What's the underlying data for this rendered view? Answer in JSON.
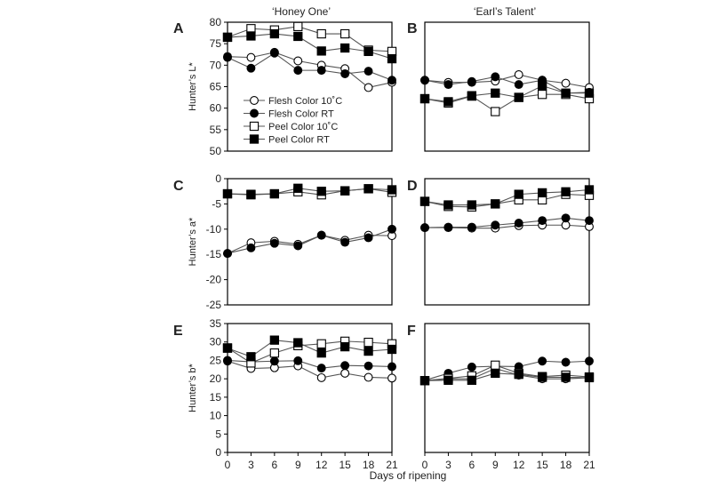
{
  "column_titles": [
    "‘Honey One’",
    "‘Earl’s Talent’"
  ],
  "x_axis_label": "Days of ripening",
  "legend": [
    {
      "label": "Flesh Color 10˚C",
      "marker": "circle",
      "fill": "open"
    },
    {
      "label": "Flesh Color RT",
      "marker": "circle",
      "fill": "filled"
    },
    {
      "label": "Peel Color 10˚C",
      "marker": "square",
      "fill": "open"
    },
    {
      "label": "Peel Color RT",
      "marker": "square",
      "fill": "filled"
    }
  ],
  "chart_data": [
    {
      "panel": "A",
      "type": "line",
      "title": "‘Honey One’",
      "ylabel": "Hunter’s L*",
      "xlabel": "",
      "x": [
        0,
        3,
        6,
        9,
        12,
        15,
        18,
        21
      ],
      "xlim": [
        0,
        21
      ],
      "ylim": [
        50,
        80
      ],
      "yticks": [
        50,
        55,
        60,
        65,
        70,
        75,
        80
      ],
      "xticks": [],
      "series": [
        {
          "name": "Flesh Color 10˚C",
          "values": [
            72,
            71.8,
            73,
            71,
            70,
            69.2,
            64.8,
            66
          ]
        },
        {
          "name": "Flesh Color RT",
          "values": [
            71.8,
            69.3,
            72.8,
            68.8,
            68.8,
            68,
            68.6,
            66.5
          ]
        },
        {
          "name": "Peel Color 10˚C",
          "values": [
            76.5,
            78.5,
            78.2,
            79,
            77.3,
            77.3,
            73.5,
            73.2
          ]
        },
        {
          "name": "Peel Color RT",
          "values": [
            76.5,
            76.8,
            77.3,
            76.7,
            73.3,
            74,
            73.2,
            71.5
          ]
        }
      ]
    },
    {
      "panel": "B",
      "type": "line",
      "title": "‘Earl’s Talent’",
      "ylabel": "",
      "xlabel": "",
      "x": [
        0,
        3,
        6,
        9,
        12,
        15,
        18,
        21
      ],
      "xlim": [
        0,
        21
      ],
      "ylim": [
        50,
        80
      ],
      "yticks": [],
      "xticks": [],
      "series": [
        {
          "name": "Flesh Color 10˚C",
          "values": [
            66.5,
            66,
            66,
            66.3,
            67.8,
            66.5,
            65.8,
            64.8
          ]
        },
        {
          "name": "Flesh Color RT",
          "values": [
            66.5,
            65.5,
            66.2,
            67.3,
            65.5,
            66.5,
            63.5,
            63.7
          ]
        },
        {
          "name": "Peel Color 10˚C",
          "values": [
            62.2,
            61.2,
            62.8,
            59.2,
            62.5,
            63.2,
            63.2,
            62.2
          ]
        },
        {
          "name": "Peel Color RT",
          "values": [
            62.2,
            61.5,
            62.9,
            63.5,
            62.5,
            65.2,
            63.5,
            63.5
          ]
        }
      ]
    },
    {
      "panel": "C",
      "type": "line",
      "title": "",
      "ylabel": "Hunter’s a*",
      "xlabel": "",
      "x": [
        0,
        3,
        6,
        9,
        12,
        15,
        18,
        21
      ],
      "xlim": [
        0,
        21
      ],
      "ylim": [
        -25,
        0
      ],
      "yticks": [
        -25,
        -20,
        -15,
        -10,
        -5,
        0
      ],
      "xticks": [],
      "series": [
        {
          "name": "Flesh Color 10˚C",
          "values": [
            -14.8,
            -12.7,
            -12.4,
            -13,
            -11.2,
            -12.2,
            -11.2,
            -11.3
          ]
        },
        {
          "name": "Flesh Color RT",
          "values": [
            -14.8,
            -13.7,
            -12.8,
            -13.3,
            -11.2,
            -12.6,
            -11.7,
            -10
          ]
        },
        {
          "name": "Peel Color 10˚C",
          "values": [
            -3,
            -3.2,
            -3,
            -2.6,
            -3.2,
            -2.4,
            -2,
            -2.7
          ]
        },
        {
          "name": "Peel Color RT",
          "values": [
            -3,
            -3.1,
            -3,
            -1.9,
            -2.5,
            -2.4,
            -2,
            -2.2
          ]
        }
      ]
    },
    {
      "panel": "D",
      "type": "line",
      "title": "",
      "ylabel": "",
      "xlabel": "",
      "x": [
        0,
        3,
        6,
        9,
        12,
        15,
        18,
        21
      ],
      "xlim": [
        0,
        21
      ],
      "ylim": [
        -25,
        0
      ],
      "yticks": [],
      "xticks": [],
      "series": [
        {
          "name": "Flesh Color 10˚C",
          "values": [
            -9.7,
            -9.7,
            -9.8,
            -9.8,
            -9.3,
            -9.2,
            -9.2,
            -9.5
          ]
        },
        {
          "name": "Flesh Color RT",
          "values": [
            -9.7,
            -9.6,
            -9.6,
            -9.2,
            -8.8,
            -8.3,
            -7.8,
            -8.3
          ]
        },
        {
          "name": "Peel Color 10˚C",
          "values": [
            -4.5,
            -5.5,
            -5.6,
            -5,
            -4.2,
            -4.2,
            -3.1,
            -3.3
          ]
        },
        {
          "name": "Peel Color RT",
          "values": [
            -4.5,
            -5.2,
            -5.2,
            -5,
            -3.1,
            -2.8,
            -2.6,
            -2.2
          ]
        }
      ]
    },
    {
      "panel": "E",
      "type": "line",
      "title": "",
      "ylabel": "Hunter’s b*",
      "xlabel": "",
      "x": [
        0,
        3,
        6,
        9,
        12,
        15,
        18,
        21
      ],
      "xlim": [
        0,
        21
      ],
      "ylim": [
        0,
        35
      ],
      "yticks": [
        0,
        5,
        10,
        15,
        20,
        25,
        30,
        35
      ],
      "xticks": [
        0,
        3,
        6,
        9,
        12,
        15,
        18,
        21
      ],
      "series": [
        {
          "name": "Flesh Color 10˚C",
          "values": [
            24.8,
            22.8,
            23,
            23.5,
            20.3,
            21.5,
            20.4,
            20.2
          ]
        },
        {
          "name": "Flesh Color RT",
          "values": [
            25,
            24.6,
            24.8,
            24.9,
            22.9,
            23.6,
            23.5,
            23.3
          ]
        },
        {
          "name": "Peel Color 10˚C",
          "values": [
            28.4,
            24.3,
            27,
            29,
            29.5,
            30.2,
            29.9,
            29.5
          ]
        },
        {
          "name": "Peel Color RT",
          "values": [
            28.3,
            26,
            30.5,
            29.8,
            27,
            28.7,
            27.5,
            28
          ]
        }
      ]
    },
    {
      "panel": "F",
      "type": "line",
      "title": "",
      "ylabel": "",
      "xlabel": "Days of ripening",
      "x": [
        0,
        3,
        6,
        9,
        12,
        15,
        18,
        21
      ],
      "xlim": [
        0,
        21
      ],
      "ylim": [
        0,
        35
      ],
      "yticks": [],
      "xticks": [
        0,
        3,
        6,
        9,
        12,
        15,
        18,
        21
      ],
      "series": [
        {
          "name": "Flesh Color 10˚C",
          "values": [
            19.5,
            20,
            20,
            22.8,
            21,
            20,
            20,
            20.3
          ]
        },
        {
          "name": "Flesh Color RT",
          "values": [
            19.6,
            21.5,
            23.2,
            23.4,
            23.3,
            24.8,
            24.5,
            24.8
          ]
        },
        {
          "name": "Peel Color 10˚C",
          "values": [
            19.5,
            20.1,
            20.8,
            23.7,
            21.5,
            20.6,
            21,
            20.5
          ]
        },
        {
          "name": "Peel Color RT",
          "values": [
            19.5,
            19.6,
            19.6,
            21.5,
            21.2,
            20.4,
            20.4,
            20.3
          ]
        }
      ]
    }
  ]
}
